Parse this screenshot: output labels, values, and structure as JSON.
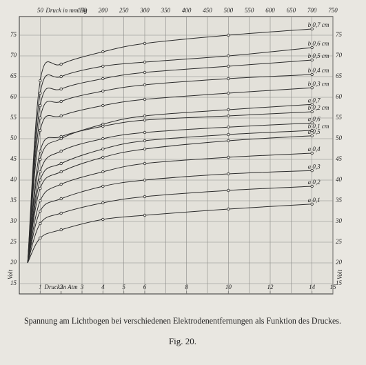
{
  "chart_data": {
    "type": "line",
    "caption": "Spannung am Lichtbogen bei verschiedenen Elektrodenentfernungen als Funktion des Druckes.",
    "figure": "Fig. 20.",
    "x_label": "Druck in Atm",
    "x2_label": "Druck in mm Hg",
    "y_label": "Volt",
    "x": [
      0.4,
      1,
      2,
      4,
      6,
      10,
      14
    ],
    "xlim": [
      0,
      15
    ],
    "xticks": [
      1,
      2,
      3,
      4,
      5,
      6,
      8,
      10,
      12,
      14,
      15
    ],
    "x2lim": [
      0,
      750
    ],
    "x2ticks": [
      50,
      150,
      200,
      250,
      300,
      350,
      400,
      450,
      500,
      550,
      600,
      650,
      700,
      750
    ],
    "ylim": [
      12.5,
      79.5
    ],
    "yticks": [
      15,
      20,
      25,
      30,
      35,
      40,
      45,
      50,
      55,
      60,
      65,
      70,
      75
    ],
    "grid": true,
    "color": "#2b2b2b",
    "series": [
      {
        "name": "b 0,7 cm",
        "values": [
          20,
          64,
          68,
          71,
          73,
          75,
          76.5
        ]
      },
      {
        "name": "b 0,6 cm",
        "values": [
          20,
          61,
          65,
          67.5,
          68.5,
          70,
          72
        ]
      },
      {
        "name": "b 0,5 cm",
        "values": [
          20,
          58,
          62,
          64.5,
          66,
          67.5,
          69
        ]
      },
      {
        "name": "b 0,4 cm",
        "values": [
          20,
          55,
          59,
          61.5,
          63,
          64.5,
          65.5
        ]
      },
      {
        "name": "b 0,3 cm",
        "values": [
          20,
          52,
          55.5,
          58,
          59.5,
          61,
          62.3
        ]
      },
      {
        "name": "a 0,7",
        "values": [
          20,
          45,
          50,
          53.5,
          55.5,
          57,
          58.3
        ]
      },
      {
        "name": "b 0,2 cm",
        "values": [
          20,
          47,
          50.5,
          53,
          54.5,
          55.5,
          56.5
        ]
      },
      {
        "name": "a 0,6",
        "values": [
          20,
          42,
          47,
          50,
          51.5,
          52.8,
          53.8
        ]
      },
      {
        "name": "b 0,1 cm",
        "values": [
          20,
          40,
          44,
          47.5,
          49.5,
          51,
          52
        ]
      },
      {
        "name": "a 0,5",
        "values": [
          20,
          38,
          42,
          45.5,
          47.5,
          49.5,
          50.7
        ]
      },
      {
        "name": "a 0,4",
        "values": [
          20,
          35,
          39,
          42,
          44,
          45.5,
          46.5
        ]
      },
      {
        "name": "a 0,3",
        "values": [
          20,
          32.5,
          35.5,
          38.5,
          40,
          41.5,
          42.3
        ]
      },
      {
        "name": "a 0,2",
        "values": [
          20,
          29.5,
          32,
          34.5,
          36,
          37.5,
          38.5
        ]
      },
      {
        "name": "a 0,1",
        "values": [
          20,
          26,
          28,
          30.5,
          31.5,
          33,
          34.2
        ]
      }
    ]
  }
}
